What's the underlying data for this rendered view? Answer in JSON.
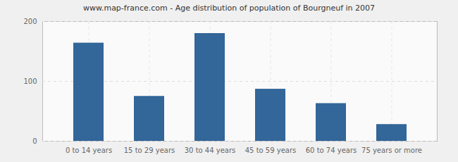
{
  "chart_data": {
    "type": "bar",
    "title": "www.map-france.com - Age distribution of population of Bourgneuf in 2007",
    "categories": [
      "0 to 14 years",
      "15 to 29 years",
      "30 to 44 years",
      "45 to 59 years",
      "60 to 74 years",
      "75 years or more"
    ],
    "values": [
      164,
      75,
      180,
      87,
      63,
      28
    ],
    "color": "#336699",
    "ylim": [
      0,
      200
    ],
    "yticks": [
      0,
      100,
      200
    ],
    "grid": true
  }
}
